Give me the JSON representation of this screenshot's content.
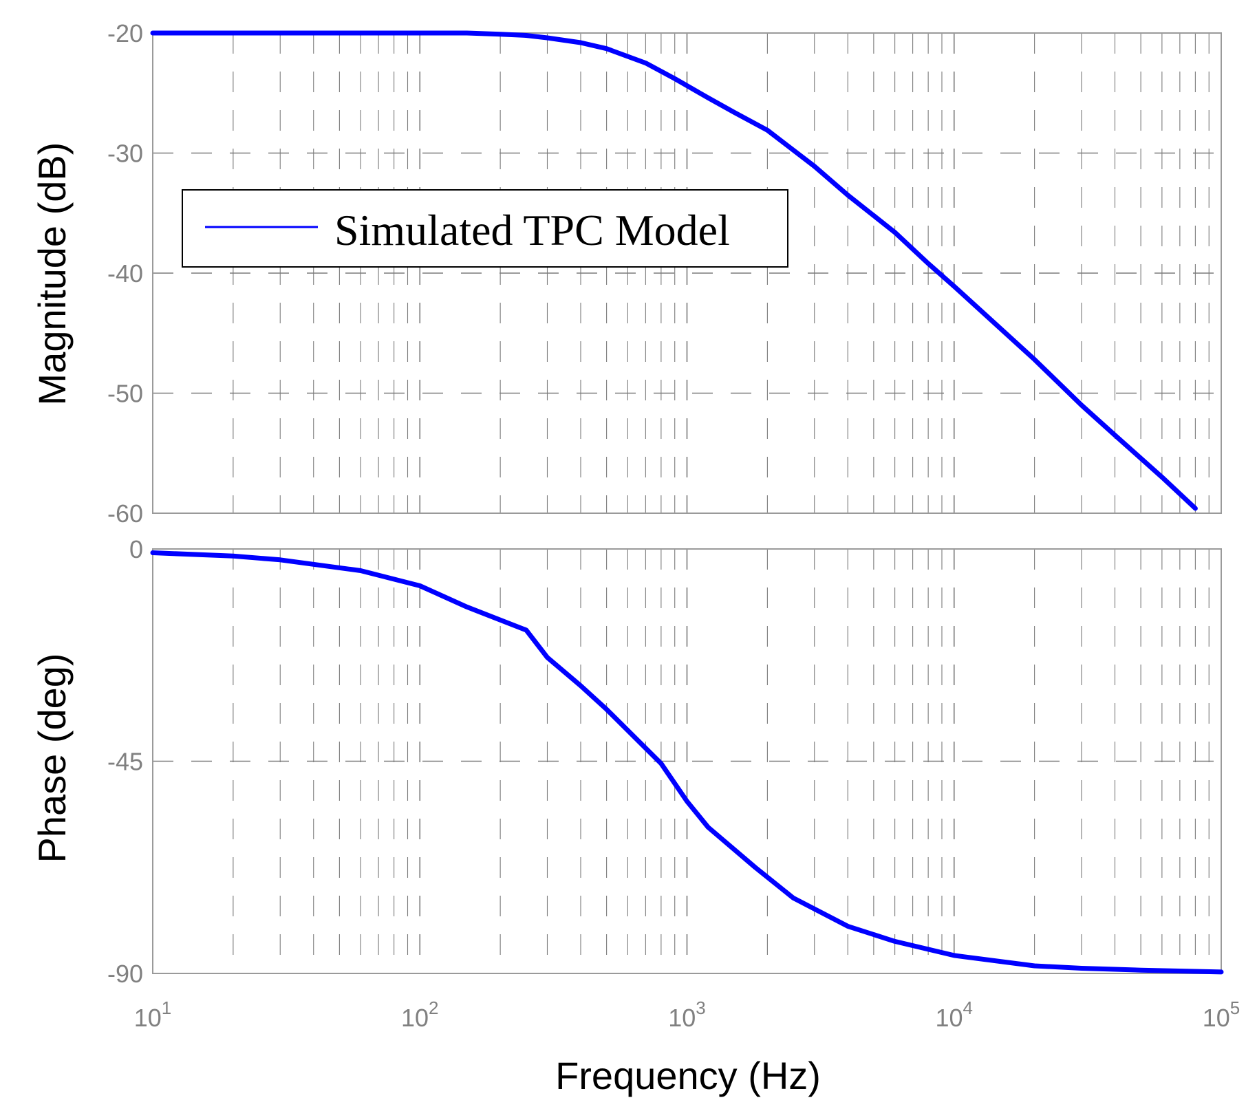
{
  "chart_data": [
    {
      "type": "line",
      "panel": "magnitude",
      "ylabel": "Magnitude (dB)",
      "ylim": [
        -60,
        -20
      ],
      "yticks": [
        "-20",
        "-30",
        "-40",
        "-50",
        "-60"
      ],
      "xlim": [
        10,
        100000
      ],
      "xscale": "log",
      "grid": true,
      "legend": {
        "position": "upper-left",
        "entries": [
          "Simulated TPC Model"
        ]
      },
      "series": [
        {
          "name": "Simulated TPC Model",
          "color": "#0000ff",
          "x": [
            10,
            20,
            50,
            100,
            150,
            200,
            250,
            300,
            400,
            500,
            700,
            900,
            1200,
            1500,
            2000,
            3000,
            4000,
            6000,
            8000,
            10000,
            20000,
            30000,
            40000,
            60000,
            80000
          ],
          "y": [
            -20,
            -20,
            -20,
            -20,
            -20,
            -20.1,
            -20.2,
            -20.4,
            -20.8,
            -21.3,
            -22.5,
            -23.8,
            -25.4,
            -26.6,
            -28.1,
            -31.1,
            -33.5,
            -36.6,
            -39.2,
            -41.1,
            -47.2,
            -51.0,
            -53.5,
            -57.0,
            -59.6
          ]
        }
      ]
    },
    {
      "type": "line",
      "panel": "phase",
      "xlabel": "Frequency (Hz)",
      "ylabel": "Phase (deg)",
      "ylim": [
        -90,
        0
      ],
      "yticks": [
        "0",
        "-45",
        "-90"
      ],
      "xlim": [
        10,
        100000
      ],
      "xscale": "log",
      "xticks": [
        {
          "base": "10",
          "exp": "1"
        },
        {
          "base": "10",
          "exp": "2"
        },
        {
          "base": "10",
          "exp": "3"
        },
        {
          "base": "10",
          "exp": "4"
        },
        {
          "base": "10",
          "exp": "5"
        }
      ],
      "grid": true,
      "series": [
        {
          "name": "Simulated TPC Model",
          "color": "#0000ff",
          "x": [
            10,
            20,
            30,
            60,
            100,
            150,
            250,
            300,
            400,
            500,
            800,
            1000,
            1200,
            1800,
            2500,
            4000,
            6000,
            10000,
            20000,
            30000,
            50000,
            100000
          ],
          "y": [
            -0.8,
            -1.5,
            -2.3,
            -4.6,
            -7.8,
            -12.3,
            -17.2,
            -23,
            -29,
            -34,
            -45.5,
            -53.5,
            -59,
            -67.5,
            -74,
            -80,
            -83.2,
            -86.2,
            -88.4,
            -88.9,
            -89.3,
            -89.7
          ]
        }
      ]
    }
  ]
}
